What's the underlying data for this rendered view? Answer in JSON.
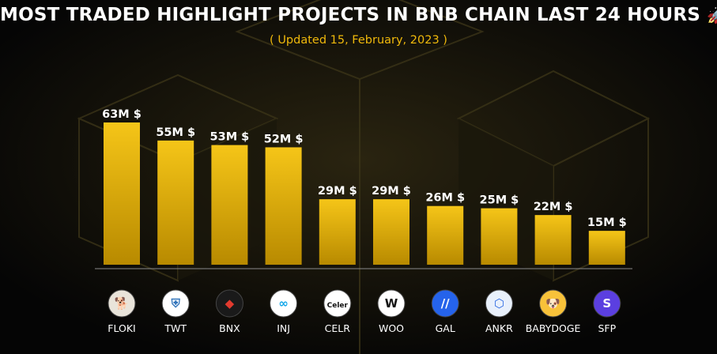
{
  "header": {
    "title": "MOST TRADED HIGHLIGHT PROJECTS IN BNB CHAIN LAST 24 HOURS",
    "title_icon": "rocket-icon",
    "subtitle": "( Updated 15, February, 2023 )"
  },
  "colors": {
    "background": "#050505",
    "bar_top": "#f5c518",
    "bar_bottom": "#b88a00",
    "subtitle": "#f0b90b",
    "baseline": "#8a8a8a"
  },
  "chart_data": {
    "type": "bar",
    "title": "MOST TRADED HIGHLIGHT PROJECTS IN BNB CHAIN LAST 24 HOURS",
    "subtitle": "( Updated 15, February, 2023 )",
    "xlabel": "",
    "ylabel": "",
    "unit_suffix": "M $",
    "categories": [
      "FLOKI",
      "TWT",
      "BNX",
      "INJ",
      "CELR",
      "WOO",
      "GAL",
      "ANKR",
      "BABYDOGE",
      "SFP"
    ],
    "values": [
      63,
      55,
      53,
      52,
      29,
      29,
      26,
      25,
      22,
      15
    ],
    "data_labels": [
      "63M $",
      "55M $",
      "53M $",
      "52M $",
      "29M $",
      "29M $",
      "26M $",
      "25M $",
      "22M $",
      "15M $"
    ],
    "ylim": [
      0,
      70
    ],
    "grid": false,
    "legend": "none",
    "icons": [
      {
        "name": "floki-shiba-icon",
        "bg": "#e9e4da",
        "fg": "#8a5a2b",
        "glyph": "🐕"
      },
      {
        "name": "twt-shield-icon",
        "bg": "#ffffff",
        "fg": "#3375bb",
        "glyph": "⛨"
      },
      {
        "name": "bnx-icon",
        "bg": "#1a1a1a",
        "fg": "#e23a2e",
        "glyph": "◆"
      },
      {
        "name": "inj-icon",
        "bg": "#ffffff",
        "fg": "#0ea5e9",
        "glyph": "∞"
      },
      {
        "name": "celer-icon",
        "bg": "#ffffff",
        "fg": "#111111",
        "glyph": "Celer"
      },
      {
        "name": "woo-icon",
        "bg": "#ffffff",
        "fg": "#111111",
        "glyph": "W"
      },
      {
        "name": "gal-icon",
        "bg": "#2563eb",
        "fg": "#ffffff",
        "glyph": "//"
      },
      {
        "name": "ankr-icon",
        "bg": "#e8f0fb",
        "fg": "#2d6ae3",
        "glyph": "⬡"
      },
      {
        "name": "babydoge-icon",
        "bg": "#f8c23a",
        "fg": "#7a4a10",
        "glyph": "🐶"
      },
      {
        "name": "sfp-icon",
        "bg": "#5b3fe0",
        "fg": "#ffffff",
        "glyph": "S"
      }
    ]
  }
}
